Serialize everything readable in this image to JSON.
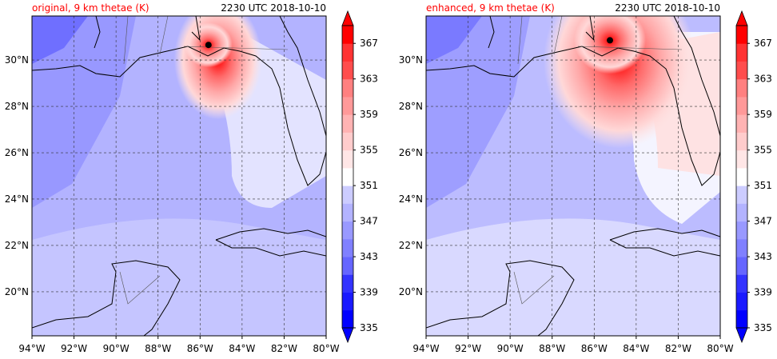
{
  "chart_data": [
    {
      "type": "heatmap",
      "title_left": "original, 9 km thetae (K)",
      "title_right": "2230 UTC 2018-10-10",
      "x_tick_labels": [
        "94°W",
        "92°W",
        "90°W",
        "88°W",
        "86°W",
        "84°W",
        "82°W",
        "80°W"
      ],
      "x_ticks": [
        -94,
        -92,
        -90,
        -88,
        -86,
        -84,
        -82,
        -80
      ],
      "y_tick_labels": [
        "20°N",
        "22°N",
        "24°N",
        "26°N",
        "28°N",
        "30°N"
      ],
      "y_ticks": [
        20,
        22,
        24,
        26,
        28,
        30
      ],
      "xlim": [
        -94,
        -80
      ],
      "ylim": [
        18.1,
        31.9
      ],
      "grid": true,
      "storm_center": {
        "lon": -85.6,
        "lat": 30.65
      },
      "colorbar": {
        "tick_labels": [
          "335",
          "339",
          "343",
          "347",
          "351",
          "355",
          "359",
          "363",
          "367"
        ],
        "levels": [
          335,
          337,
          339,
          341,
          343,
          345,
          347,
          349,
          351,
          353,
          355,
          357,
          359,
          361,
          363,
          365,
          367,
          369
        ],
        "extend": "both"
      }
    },
    {
      "type": "heatmap",
      "title_left": "enhanced, 9 km thetae (K)",
      "title_right": "2230 UTC 2018-10-10",
      "x_tick_labels": [
        "94°W",
        "92°W",
        "90°W",
        "88°W",
        "86°W",
        "84°W",
        "82°W",
        "80°W"
      ],
      "x_ticks": [
        -94,
        -92,
        -90,
        -88,
        -86,
        -84,
        -82,
        -80
      ],
      "y_tick_labels": [
        "20°N",
        "22°N",
        "24°N",
        "26°N",
        "28°N",
        "30°N"
      ],
      "y_ticks": [
        20,
        22,
        24,
        26,
        28,
        30
      ],
      "xlim": [
        -94,
        -80
      ],
      "ylim": [
        18.1,
        31.9
      ],
      "grid": true,
      "storm_center": {
        "lon": -85.25,
        "lat": 30.85
      },
      "colorbar": {
        "tick_labels": [
          "335",
          "339",
          "343",
          "347",
          "351",
          "355",
          "359",
          "363",
          "367"
        ],
        "levels": [
          335,
          337,
          339,
          341,
          343,
          345,
          347,
          349,
          351,
          353,
          355,
          357,
          359,
          361,
          363,
          365,
          367,
          369
        ],
        "extend": "both"
      }
    }
  ],
  "colors": {
    "title_left": "#ff0000",
    "ramp": [
      "#0000ff",
      "#1a1aff",
      "#3333ff",
      "#4d4dff",
      "#6666ff",
      "#8080ff",
      "#9999ff",
      "#b3b3ff",
      "#ccccff",
      "#e6e6ff",
      "#ffffff",
      "#ffe6e6",
      "#ffcccc",
      "#ffb3b3",
      "#ff9999",
      "#ff8080",
      "#ff6666",
      "#ff4d4d",
      "#ff3333",
      "#ff0000"
    ]
  }
}
